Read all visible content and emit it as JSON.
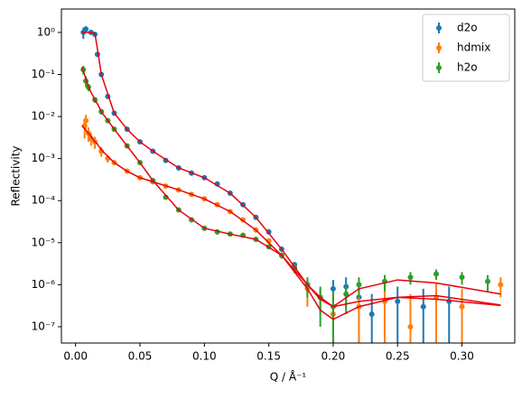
{
  "chart_data": {
    "type": "errorbar",
    "xlabel": "Q / Å⁻¹",
    "ylabel": "Reflectivity",
    "xlim": [
      -0.011,
      0.341
    ],
    "ylim": [
      4.1e-08,
      3.6
    ],
    "ylog": true,
    "xticks": [
      {
        "value": 0,
        "label": "0.00"
      },
      0.05,
      {
        "value": 0.1,
        "label": "0.10"
      },
      0.15,
      {
        "value": 0.2,
        "label": "0.20"
      },
      0.25,
      {
        "value": 0.3,
        "label": "0.30"
      }
    ],
    "yticks": [
      {
        "value": 1e-07,
        "label": "10⁻⁷"
      },
      {
        "value": 1e-06,
        "label": "10⁻⁶"
      },
      {
        "value": 1e-05,
        "label": "10⁻⁵"
      },
      {
        "value": 0.0001,
        "label": "10⁻⁴"
      },
      {
        "value": 0.001,
        "label": "10⁻³"
      },
      {
        "value": 0.01,
        "label": "10⁻²"
      },
      {
        "value": 0.1,
        "label": "10⁻¹"
      },
      {
        "value": 1,
        "label": "10⁰"
      }
    ],
    "legend": "upper right",
    "series": [
      {
        "name": "d2o",
        "color": "#1f77b4",
        "x": [
          0.006,
          0.008,
          0.012,
          0.015,
          0.017,
          0.02,
          0.025,
          0.03,
          0.04,
          0.05,
          0.06,
          0.07,
          0.08,
          0.09,
          0.1,
          0.11,
          0.12,
          0.13,
          0.14,
          0.15,
          0.16,
          0.17,
          0.18,
          0.19,
          0.2,
          0.21,
          0.22,
          0.23,
          0.25,
          0.27,
          0.29
        ],
        "values": [
          1.0,
          1.2,
          1.0,
          0.9,
          0.3,
          0.1,
          0.03,
          0.012,
          0.005,
          0.0025,
          0.0015,
          0.0009,
          0.0006,
          0.00045,
          0.00035,
          0.00025,
          0.00015,
          8e-05,
          4e-05,
          1.8e-05,
          7e-06,
          3e-06,
          1e-06,
          5e-07,
          8e-07,
          9e-07,
          5e-07,
          2e-07,
          4e-07,
          3e-07,
          4e-07
        ],
        "errors": [
          0.3,
          0.2,
          0.1,
          0.08,
          0.03,
          0.01,
          0.003,
          0.001,
          0.0004,
          0.0002,
          0.0001,
          6e-05,
          4e-05,
          3e-05,
          2e-05,
          1.5e-05,
          9e-06,
          5e-06,
          2.5e-06,
          1.2e-06,
          6e-07,
          4e-07,
          3e-07,
          3e-07,
          5e-07,
          6e-07,
          5e-07,
          4e-07,
          5e-07,
          5e-07,
          5e-07
        ]
      },
      {
        "name": "hdmix",
        "color": "#ff7f0e",
        "x": [
          0.007,
          0.008,
          0.01,
          0.012,
          0.015,
          0.02,
          0.025,
          0.03,
          0.04,
          0.05,
          0.06,
          0.07,
          0.08,
          0.09,
          0.1,
          0.11,
          0.12,
          0.13,
          0.14,
          0.15,
          0.16,
          0.17,
          0.18,
          0.2,
          0.22,
          0.24,
          0.26,
          0.28,
          0.3,
          0.33
        ],
        "values": [
          0.006,
          0.008,
          0.004,
          0.003,
          0.0025,
          0.0015,
          0.001,
          0.0008,
          0.0005,
          0.00035,
          0.00028,
          0.00022,
          0.00018,
          0.00014,
          0.00011,
          8e-05,
          5.5e-05,
          3.5e-05,
          2e-05,
          1.1e-05,
          5e-06,
          2.5e-06,
          8e-07,
          2e-07,
          3e-07,
          4e-07,
          1e-07,
          5e-07,
          3e-07,
          1e-06
        ],
        "errors": [
          0.003,
          0.003,
          0.0015,
          0.001,
          0.0008,
          0.0004,
          0.0002,
          0.0001,
          5e-05,
          3e-05,
          2e-05,
          1.5e-05,
          1.2e-05,
          1e-05,
          8e-06,
          6e-06,
          4e-06,
          3e-06,
          2e-06,
          1.2e-06,
          8e-07,
          6e-07,
          5e-07,
          4e-07,
          5e-07,
          6e-07,
          5e-07,
          6e-07,
          5e-07,
          5e-07
        ]
      },
      {
        "name": "h2o",
        "color": "#2ca02c",
        "x": [
          0.006,
          0.008,
          0.01,
          0.015,
          0.02,
          0.025,
          0.03,
          0.04,
          0.05,
          0.06,
          0.07,
          0.08,
          0.09,
          0.1,
          0.11,
          0.12,
          0.13,
          0.14,
          0.15,
          0.16,
          0.17,
          0.18,
          0.19,
          0.2,
          0.21,
          0.22,
          0.24,
          0.26,
          0.28,
          0.3,
          0.32
        ],
        "values": [
          0.13,
          0.07,
          0.05,
          0.025,
          0.013,
          0.008,
          0.005,
          0.002,
          0.0008,
          0.0003,
          0.00012,
          6e-05,
          3.5e-05,
          2.2e-05,
          1.8e-05,
          1.6e-05,
          1.5e-05,
          1.2e-05,
          8e-06,
          5e-06,
          2.5e-06,
          1e-06,
          5e-07,
          3e-07,
          6e-07,
          1e-06,
          1.2e-06,
          1.5e-06,
          1.8e-06,
          1.5e-06,
          1.2e-06
        ],
        "errors": [
          0.03,
          0.02,
          0.01,
          0.004,
          0.002,
          0.001,
          0.0006,
          0.0002,
          8e-05,
          3e-05,
          1.2e-05,
          6e-06,
          4e-06,
          3e-06,
          2.5e-06,
          2e-06,
          2e-06,
          1.5e-06,
          1e-06,
          8e-07,
          6e-07,
          5e-07,
          4e-07,
          4e-07,
          4e-07,
          5e-07,
          5e-07,
          5e-07,
          5e-07,
          5e-07,
          5e-07
        ]
      }
    ],
    "fit_color": "#e8000b",
    "fits": [
      {
        "x": [
          0.005,
          0.01,
          0.015,
          0.017,
          0.02,
          0.03,
          0.04,
          0.05,
          0.06,
          0.08,
          0.1,
          0.12,
          0.14,
          0.16,
          0.18,
          0.19,
          0.2,
          0.22,
          0.25,
          0.28,
          0.33
        ],
        "values": [
          1,
          1,
          0.95,
          0.4,
          0.1,
          0.012,
          0.005,
          0.0025,
          0.0015,
          0.0006,
          0.00035,
          0.00015,
          4e-05,
          7e-06,
          1e-06,
          4.5e-07,
          3e-07,
          4e-07,
          5e-07,
          4.5e-07,
          3.2e-07
        ]
      },
      {
        "x": [
          0.005,
          0.01,
          0.015,
          0.017,
          0.02,
          0.03,
          0.04,
          0.05,
          0.06,
          0.08,
          0.1,
          0.12,
          0.14,
          0.16,
          0.18,
          0.19,
          0.2,
          0.22,
          0.25,
          0.28,
          0.33
        ],
        "values": [
          0.006,
          0.004,
          0.0025,
          0.0022,
          0.0016,
          0.0008,
          0.0005,
          0.00035,
          0.00028,
          0.00018,
          0.00011,
          5.5e-05,
          2e-05,
          5e-06,
          8e-07,
          2.5e-07,
          1.5e-07,
          3e-07,
          5e-07,
          5.5e-07,
          3.3e-07
        ]
      },
      {
        "x": [
          0.005,
          0.01,
          0.015,
          0.017,
          0.02,
          0.03,
          0.04,
          0.05,
          0.06,
          0.08,
          0.1,
          0.12,
          0.14,
          0.16,
          0.18,
          0.19,
          0.2,
          0.22,
          0.25,
          0.28,
          0.33
        ],
        "values": [
          0.15,
          0.05,
          0.025,
          0.02,
          0.013,
          0.005,
          0.002,
          0.0008,
          0.0003,
          6e-05,
          2.2e-05,
          1.6e-05,
          1.2e-05,
          5e-06,
          1e-06,
          5e-07,
          3e-07,
          8e-07,
          1.3e-06,
          1.1e-06,
          6e-07
        ]
      }
    ]
  }
}
